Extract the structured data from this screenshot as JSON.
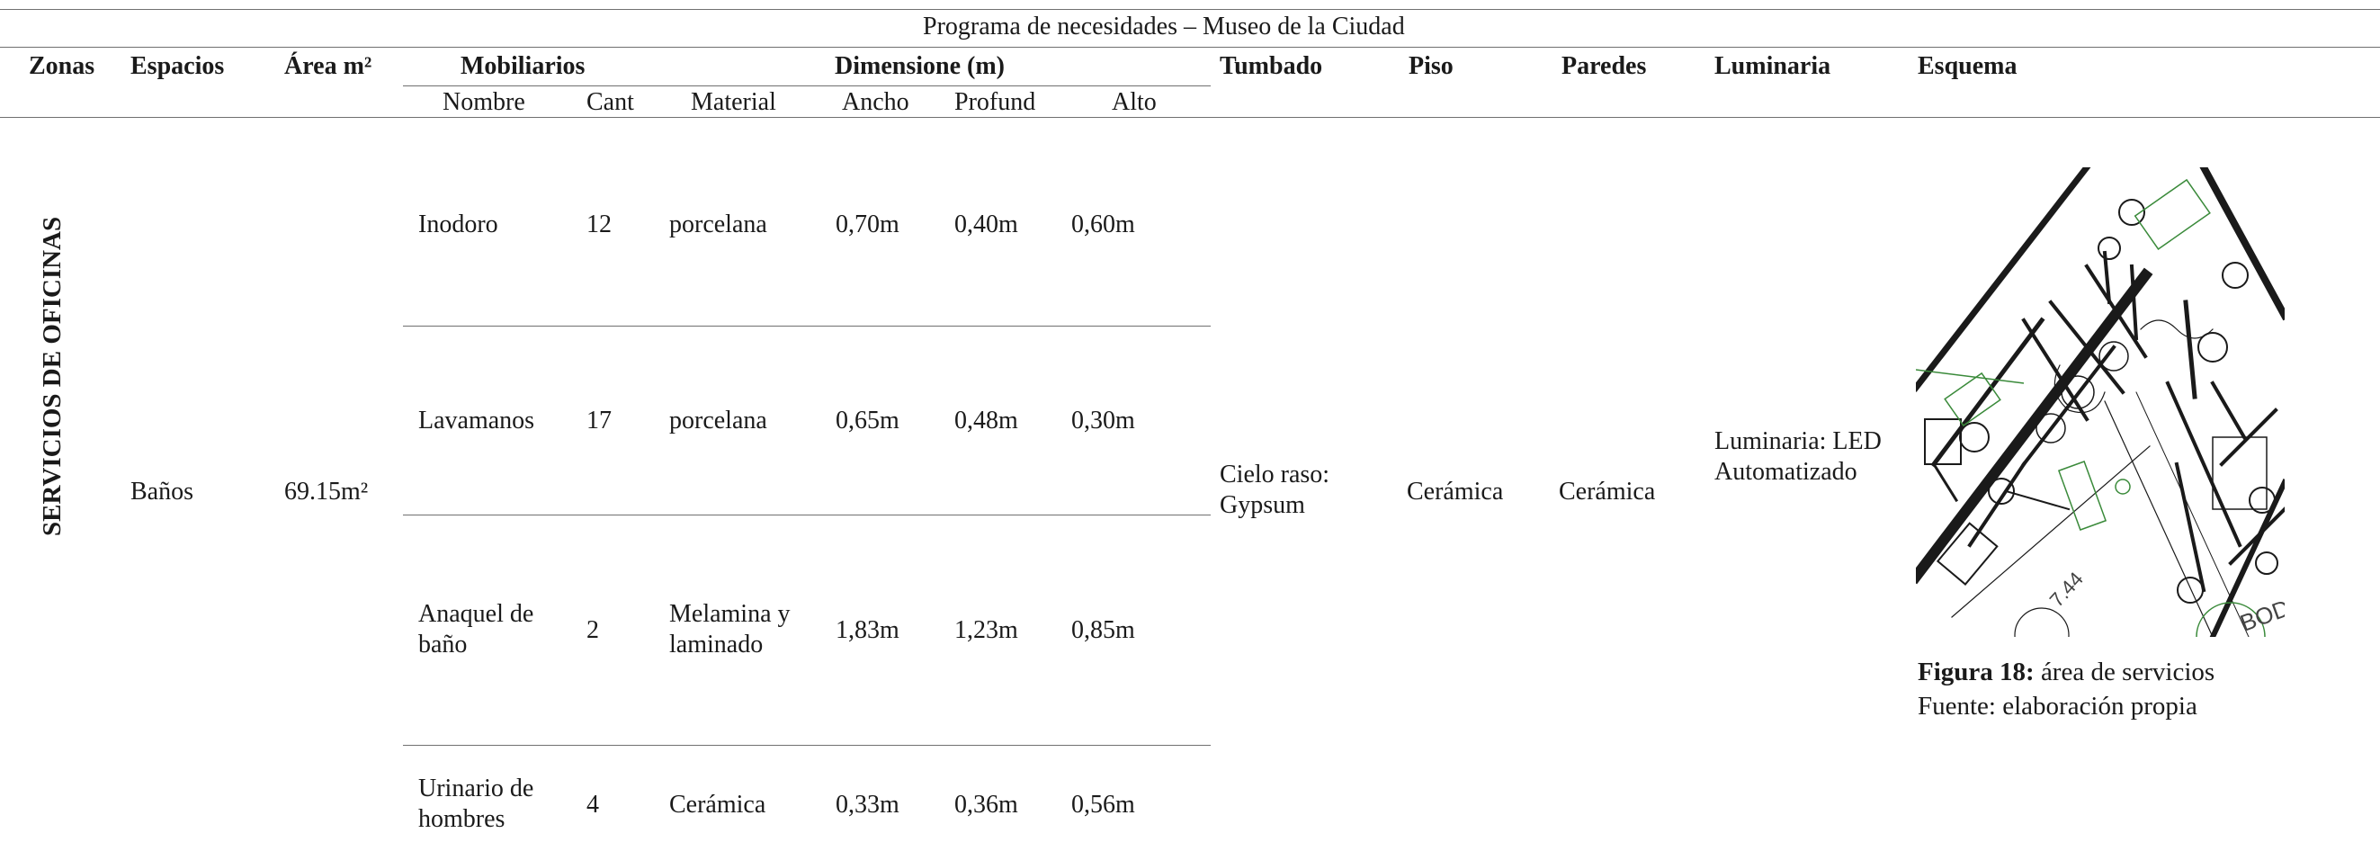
{
  "table": {
    "title": "Programa de necesidades – Museo de la Ciudad",
    "headers": {
      "zonas": "Zonas",
      "espacios": "Espacios",
      "area": "Área m²",
      "mobiliarios": "Mobiliarios",
      "dimensiones": "Dimensione (m)",
      "tumbado": "Tumbado",
      "piso": "Piso",
      "paredes": "Paredes",
      "luminaria": "Luminaria",
      "esquema": "Esquema"
    },
    "subheaders": {
      "nombre": "Nombre",
      "cant": "Cant",
      "material": "Material",
      "ancho": "Ancho",
      "profund": "Profund",
      "alto": "Alto"
    },
    "zona": "SERVICIOS DE OFICINAS",
    "espacio": "Baños",
    "area": "69.15m²",
    "items": [
      {
        "nombre": "Inodoro",
        "cant": "12",
        "material": "porcelana",
        "ancho": "0,70m",
        "profund": "0,40m",
        "alto": "0,60m"
      },
      {
        "nombre": "Lavamanos",
        "cant": "17",
        "material": "porcelana",
        "ancho": "0,65m",
        "profund": "0,48m",
        "alto": "0,30m"
      },
      {
        "nombre": "Anaquel de baño",
        "cant": "2",
        "material": "Melamina y laminado",
        "ancho": "1,83m",
        "profund": "1,23m",
        "alto": "0,85m"
      },
      {
        "nombre": "Urinario de hombres",
        "cant": "4",
        "material": "Cerámica",
        "ancho": "0,33m",
        "profund": "0,36m",
        "alto": "0,56m"
      }
    ],
    "tumbado": "Cielo raso: Gypsum",
    "piso": "Cerámica",
    "paredes": "Cerámica",
    "luminaria": "Luminaria: LED Automatizado",
    "esquema": {
      "dimension_label": "7.44",
      "plan_label": "BODE",
      "caption_bold": "Figura 18:",
      "caption_text": " área de servicios",
      "source": "Fuente: elaboración propia"
    }
  }
}
